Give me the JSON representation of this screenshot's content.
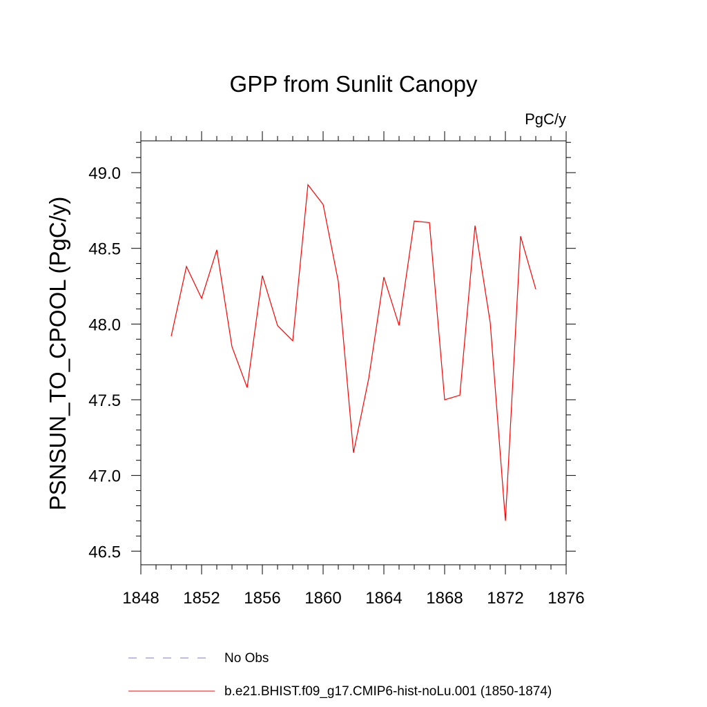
{
  "chart_data": {
    "type": "line",
    "title": "GPP from Sunlit Canopy",
    "units_label": "PgC/y",
    "ylabel": "PSNSUN_TO_CPOOL  (PgC/y)",
    "xlabel": "",
    "xlim": [
      1848,
      1876
    ],
    "ylim": [
      46.41,
      49.21
    ],
    "x_ticks": [
      "1848",
      "1852",
      "1856",
      "1860",
      "1864",
      "1868",
      "1872",
      "1876"
    ],
    "y_ticks": [
      "46.5",
      "47.0",
      "47.5",
      "48.0",
      "48.5",
      "49.0"
    ],
    "grid": false,
    "legend_position": "bottom",
    "series": [
      {
        "name": "b.e21.BHIST.f09_g17.CMIP6-hist-noLu.001 (1850-1874)",
        "color": "#ff0000",
        "style": "solid",
        "x": [
          1850,
          1851,
          1852,
          1853,
          1854,
          1855,
          1856,
          1857,
          1858,
          1859,
          1860,
          1861,
          1862,
          1863,
          1864,
          1865,
          1866,
          1867,
          1868,
          1869,
          1870,
          1871,
          1872,
          1873,
          1874
        ],
        "values": [
          47.92,
          48.38,
          48.17,
          48.49,
          47.85,
          47.58,
          48.32,
          47.99,
          47.89,
          48.92,
          48.79,
          48.28,
          47.15,
          47.64,
          48.31,
          47.99,
          48.68,
          48.67,
          47.5,
          47.53,
          48.65,
          48.01,
          46.7,
          48.58,
          48.23
        ]
      },
      {
        "name": "No Obs",
        "color": "#7b7bc8",
        "style": "dashed",
        "x": [],
        "values": []
      }
    ]
  }
}
